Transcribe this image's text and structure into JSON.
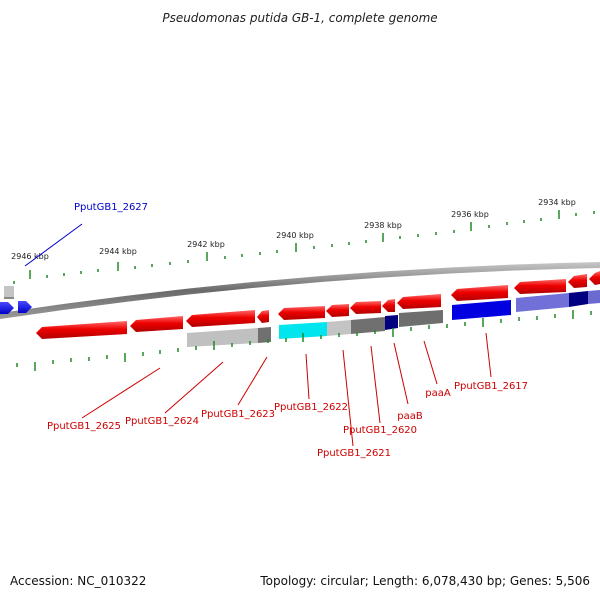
{
  "title": "Pseudomonas putida GB-1, complete genome",
  "scale_labels": [
    "2946 kbp",
    "2944 kbp",
    "2942 kbp",
    "2940 kbp",
    "2938 kbp",
    "2936 kbp",
    "2934 kbp"
  ],
  "gene_labels": [
    {
      "text": "PputGB1_2627",
      "color": "#0000cc"
    },
    {
      "text": "PputGB1_2625",
      "color": "#cc0000"
    },
    {
      "text": "PputGB1_2624",
      "color": "#cc0000"
    },
    {
      "text": "PputGB1_2623",
      "color": "#cc0000"
    },
    {
      "text": "PputGB1_2622",
      "color": "#cc0000"
    },
    {
      "text": "PputGB1_2621",
      "color": "#cc0000"
    },
    {
      "text": "PputGB1_2620",
      "color": "#cc0000"
    },
    {
      "text": "paaB",
      "color": "#cc0000"
    },
    {
      "text": "paaA",
      "color": "#cc0000"
    },
    {
      "text": "PputGB1_2617",
      "color": "#cc0000"
    }
  ],
  "footer": {
    "accession": "Accession: NC_010322",
    "topology": "Topology: circular; Length: 6,078,430 bp; Genes: 5,506"
  },
  "colors": {
    "gene_forward": "#e00000",
    "gene_reverse_blue": "#0000dd",
    "backbone": "#808080",
    "ticks": "#228822",
    "cyan_feature": "#00e5ee",
    "navy_feature": "#000080"
  }
}
